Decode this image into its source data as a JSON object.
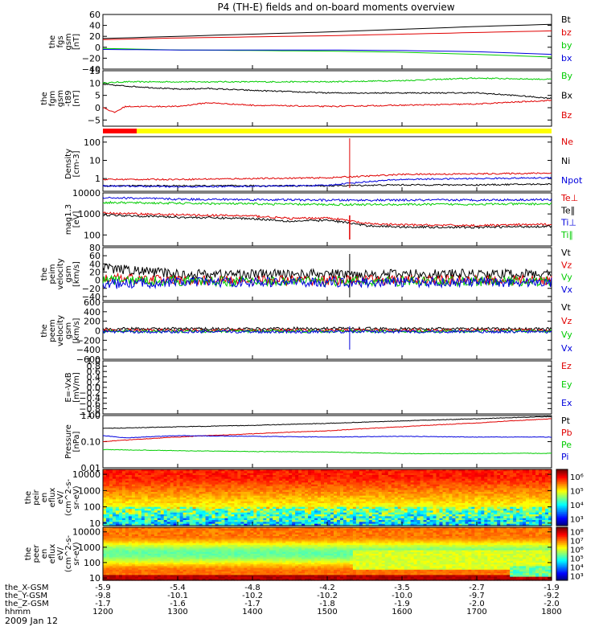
{
  "title": "P4 (TH-E) fields and on-board moments overview",
  "date_label": "2009 Jan 12",
  "chart_data": [
    {
      "type": "line",
      "id": "fgs",
      "ylabel": [
        "the",
        "fgs",
        "gsm",
        "[nT]"
      ],
      "ylim": [
        -40,
        60
      ],
      "yticks": [
        -40,
        -20,
        0,
        20,
        40,
        60
      ],
      "tick_labels": [
        "−40",
        "−20",
        "0",
        "20",
        "40",
        "60"
      ],
      "legend": [
        {
          "label": "Bt",
          "color": "#000000"
        },
        {
          "label": "bz",
          "color": "#e00000"
        },
        {
          "label": "by",
          "color": "#00cc00"
        },
        {
          "label": "bx",
          "color": "#0000dd"
        }
      ],
      "series": [
        {
          "name": "Bt",
          "color": "#000000",
          "x": [
            1200,
            1300,
            1400,
            1500,
            1600,
            1700,
            1800
          ],
          "values": [
            16,
            20,
            24,
            28,
            33,
            38,
            42
          ]
        },
        {
          "name": "bz",
          "color": "#e00000",
          "x": [
            1200,
            1300,
            1400,
            1500,
            1600,
            1700,
            1800
          ],
          "values": [
            14,
            17,
            19,
            21,
            24,
            27,
            30
          ]
        },
        {
          "name": "by",
          "color": "#00cc00",
          "x": [
            1200,
            1300,
            1400,
            1500,
            1600,
            1700,
            1800
          ],
          "values": [
            -2,
            -5,
            -6,
            -7,
            -9,
            -13,
            -18
          ]
        },
        {
          "name": "bx",
          "color": "#0000dd",
          "x": [
            1200,
            1300,
            1400,
            1500,
            1600,
            1700,
            1800
          ],
          "values": [
            -4,
            -5,
            -5,
            -5,
            -6,
            -8,
            -13
          ]
        }
      ]
    },
    {
      "type": "line",
      "id": "fgm",
      "ylabel": [
        "the",
        "fgm",
        "gsm",
        "-t89",
        "[nT]"
      ],
      "ylim": [
        -7.5,
        15
      ],
      "yticks": [
        -5,
        0,
        5,
        10,
        15
      ],
      "tick_labels": [
        "−5",
        "0",
        "5",
        "10",
        "15"
      ],
      "legend": [
        {
          "label": "By",
          "color": "#00cc00"
        },
        {
          "label": "Bx",
          "color": "#000000"
        },
        {
          "label": "Bz",
          "color": "#e00000"
        }
      ],
      "series": [
        {
          "name": "By",
          "color": "#00cc00",
          "x": [
            1200,
            1230,
            1300,
            1400,
            1500,
            1600,
            1700,
            1800
          ],
          "values": [
            10,
            10.5,
            10.5,
            10.5,
            10.5,
            11,
            12,
            11.5
          ]
        },
        {
          "name": "Bx",
          "color": "#000000",
          "x": [
            1200,
            1220,
            1300,
            1340,
            1400,
            1500,
            1600,
            1700,
            1750,
            1800
          ],
          "values": [
            9.5,
            9,
            7.5,
            7.8,
            7,
            6,
            6,
            6,
            5,
            3.8
          ]
        },
        {
          "name": "Bz",
          "color": "#e00000",
          "x": [
            1200,
            1215,
            1230,
            1300,
            1340,
            1400,
            1500,
            1600,
            1700,
            1800
          ],
          "values": [
            0.2,
            -2,
            0.5,
            0.5,
            2,
            1,
            0.5,
            1,
            1.5,
            3
          ]
        }
      ]
    },
    {
      "type": "line",
      "id": "density",
      "ylabel": [
        "Density",
        "[cm-3]"
      ],
      "yscale": "log",
      "ylim": [
        0.2,
        200
      ],
      "yticks": [
        1,
        10,
        100
      ],
      "tick_labels": [
        "1",
        "10",
        "100"
      ],
      "legend": [
        {
          "label": "Ne",
          "color": "#e00000"
        },
        {
          "label": "Ni",
          "color": "#000000"
        },
        {
          "label": "Npot",
          "color": "#0000dd"
        }
      ],
      "series": [
        {
          "name": "Ne",
          "color": "#e00000",
          "x": [
            1200,
            1300,
            1400,
            1500,
            1560,
            1600,
            1700,
            1800
          ],
          "values": [
            0.9,
            0.9,
            1.0,
            1.1,
            1.4,
            1.7,
            1.8,
            2.0
          ]
        },
        {
          "name": "Ni",
          "color": "#000000",
          "x": [
            1200,
            1300,
            1400,
            1500,
            1600,
            1700,
            1800
          ],
          "values": [
            0.4,
            0.4,
            0.4,
            0.4,
            0.45,
            0.45,
            0.5
          ]
        },
        {
          "name": "Npot",
          "color": "#0000dd",
          "x": [
            1200,
            1300,
            1400,
            1500,
            1560,
            1600,
            1700,
            1800
          ],
          "values": [
            0.4,
            0.35,
            0.38,
            0.42,
            0.7,
            0.9,
            1.0,
            1.1
          ]
        }
      ]
    },
    {
      "type": "line",
      "id": "temperature",
      "ylabel": [
        "mag1.3",
        "[eV]"
      ],
      "yscale": "log",
      "ylim": [
        30,
        10000
      ],
      "yticks": [
        100,
        1000,
        10000
      ],
      "tick_labels": [
        "100",
        "1000",
        "10000"
      ],
      "legend": [
        {
          "label": "Te⊥",
          "color": "#e00000"
        },
        {
          "label": "Te∥",
          "color": "#000000"
        },
        {
          "label": "Ti⊥",
          "color": "#0000dd"
        },
        {
          "label": "Ti∥",
          "color": "#00cc00"
        }
      ],
      "series": [
        {
          "name": "Ti⊥",
          "color": "#0000dd",
          "x": [
            1200,
            1300,
            1400,
            1500,
            1600,
            1700,
            1800
          ],
          "values": [
            6000,
            5000,
            4800,
            4500,
            4500,
            4600,
            4800
          ]
        },
        {
          "name": "Ti∥",
          "color": "#00cc00",
          "x": [
            1200,
            1300,
            1400,
            1500,
            1600,
            1700,
            1800
          ],
          "values": [
            3500,
            3200,
            3000,
            2800,
            2800,
            2900,
            3000
          ]
        },
        {
          "name": "Te⊥",
          "color": "#e00000",
          "x": [
            1200,
            1300,
            1400,
            1450,
            1500,
            1550,
            1600,
            1700,
            1800
          ],
          "values": [
            1100,
            900,
            800,
            600,
            650,
            350,
            300,
            280,
            320
          ]
        },
        {
          "name": "Te∥",
          "color": "#000000",
          "x": [
            1200,
            1300,
            1400,
            1450,
            1500,
            1550,
            1600,
            1700,
            1800
          ],
          "values": [
            900,
            700,
            600,
            450,
            500,
            280,
            240,
            230,
            260
          ]
        }
      ]
    },
    {
      "type": "line",
      "id": "velocity1",
      "ylabel": [
        "the",
        "peim",
        "velocity",
        "gsm",
        "[km/s]"
      ],
      "ylim": [
        -50,
        80
      ],
      "yticks": [
        -40,
        -20,
        0,
        20,
        40,
        60,
        80
      ],
      "tick_labels": [
        "−40",
        "−20",
        "0",
        "20",
        "40",
        "60",
        "80"
      ],
      "legend": [
        {
          "label": "Vt",
          "color": "#000000"
        },
        {
          "label": "Vz",
          "color": "#e00000"
        },
        {
          "label": "Vy",
          "color": "#00cc00"
        },
        {
          "label": "Vx",
          "color": "#0000dd"
        }
      ],
      "series": [
        {
          "name": "Vt",
          "color": "#000000",
          "x": [
            1200,
            1300,
            1400,
            1500,
            1600,
            1700,
            1800
          ],
          "values": [
            30,
            15,
            15,
            15,
            15,
            15,
            15
          ]
        },
        {
          "name": "Vz",
          "color": "#e00000",
          "x": [
            1200,
            1300,
            1400,
            1500,
            1600,
            1700,
            1800
          ],
          "values": [
            5,
            0,
            0,
            0,
            0,
            0,
            0
          ]
        },
        {
          "name": "Vy",
          "color": "#00cc00",
          "x": [
            1200,
            1300,
            1400,
            1500,
            1600,
            1700,
            1800
          ],
          "values": [
            0,
            -2,
            -3,
            -3,
            -3,
            -3,
            -3
          ]
        },
        {
          "name": "Vx",
          "color": "#0000dd",
          "x": [
            1200,
            1300,
            1400,
            1500,
            1600,
            1700,
            1800
          ],
          "values": [
            -10,
            -5,
            -5,
            -5,
            -5,
            -5,
            -5
          ]
        }
      ]
    },
    {
      "type": "line",
      "id": "velocity2",
      "ylabel": [
        "the",
        "peem",
        "velocity",
        "gsm",
        "[km/s]"
      ],
      "ylim": [
        -600,
        600
      ],
      "yticks": [
        -600,
        -400,
        -200,
        0,
        200,
        400,
        600
      ],
      "tick_labels": [
        "−600",
        "−400",
        "−200",
        "0",
        "200",
        "400",
        "600"
      ],
      "legend": [
        {
          "label": "Vt",
          "color": "#000000"
        },
        {
          "label": "Vz",
          "color": "#e00000"
        },
        {
          "label": "Vy",
          "color": "#00cc00"
        },
        {
          "label": "Vx",
          "color": "#0000dd"
        }
      ],
      "series": [
        {
          "name": "Vt",
          "color": "#000000",
          "x": [
            1200,
            1300,
            1400,
            1500,
            1600,
            1700,
            1800
          ],
          "values": [
            40,
            40,
            40,
            50,
            40,
            40,
            40
          ]
        },
        {
          "name": "Vz",
          "color": "#e00000",
          "x": [
            1200,
            1300,
            1400,
            1500,
            1600,
            1700,
            1800
          ],
          "values": [
            10,
            10,
            10,
            10,
            10,
            10,
            10
          ]
        },
        {
          "name": "Vy",
          "color": "#00cc00",
          "x": [
            1200,
            1300,
            1400,
            1500,
            1600,
            1700,
            1800
          ],
          "values": [
            -10,
            -10,
            -10,
            -10,
            -10,
            -10,
            -10
          ]
        },
        {
          "name": "Vx",
          "color": "#0000dd",
          "x": [
            1200,
            1300,
            1400,
            1500,
            1600,
            1700,
            1800
          ],
          "values": [
            -20,
            -20,
            -20,
            -20,
            -20,
            -20,
            -20
          ]
        }
      ]
    },
    {
      "type": "line",
      "id": "efield",
      "ylabel": [
        "E=-VxB",
        "[mV/m]"
      ],
      "ylim": [
        -1,
        1
      ],
      "yticks": [
        -1.0,
        -0.8,
        -0.6,
        -0.4,
        -0.2,
        0.0,
        0.2,
        0.4,
        0.6,
        0.8,
        1.0
      ],
      "tick_labels": [
        "−1.0",
        "−0.8",
        "−0.6",
        "−0.4",
        "−0.2",
        "0.0",
        "0.2",
        "0.4",
        "0.6",
        "0.8",
        "1.0"
      ],
      "legend": [
        {
          "label": "Ez",
          "color": "#e00000"
        },
        {
          "label": "Ey",
          "color": "#00cc00"
        },
        {
          "label": "Ex",
          "color": "#0000dd"
        }
      ],
      "series": []
    },
    {
      "type": "line",
      "id": "pressure",
      "ylabel": [
        "Pressure",
        "[nPa]"
      ],
      "yscale": "log",
      "ylim": [
        0.01,
        1
      ],
      "yticks": [
        0.01,
        0.1,
        1
      ],
      "tick_labels": [
        "0.01",
        "0.10",
        "1.00"
      ],
      "legend": [
        {
          "label": "Pt",
          "color": "#000000"
        },
        {
          "label": "Pb",
          "color": "#e00000"
        },
        {
          "label": "Pe",
          "color": "#00cc00"
        },
        {
          "label": "Pi",
          "color": "#0000dd"
        }
      ],
      "series": [
        {
          "name": "Pt",
          "color": "#000000",
          "x": [
            1200,
            1300,
            1400,
            1500,
            1600,
            1700,
            1800
          ],
          "values": [
            0.32,
            0.37,
            0.42,
            0.5,
            0.62,
            0.75,
            0.92
          ]
        },
        {
          "name": "Pb",
          "color": "#e00000",
          "x": [
            1200,
            1300,
            1400,
            1500,
            1600,
            1700,
            1800
          ],
          "values": [
            0.1,
            0.15,
            0.2,
            0.26,
            0.37,
            0.52,
            0.75
          ]
        },
        {
          "name": "Pi",
          "color": "#0000dd",
          "x": [
            1200,
            1230,
            1300,
            1400,
            1500,
            1600,
            1700,
            1800
          ],
          "values": [
            0.17,
            0.14,
            0.17,
            0.16,
            0.15,
            0.16,
            0.15,
            0.15
          ]
        },
        {
          "name": "Pe",
          "color": "#00cc00",
          "x": [
            1200,
            1300,
            1400,
            1500,
            1600,
            1700,
            1800
          ],
          "values": [
            0.05,
            0.045,
            0.042,
            0.04,
            0.035,
            0.035,
            0.036
          ]
        }
      ]
    },
    {
      "type": "heatmap",
      "id": "peir",
      "ylabel": [
        "the",
        "peir",
        "en",
        "eflux",
        "eV/",
        "(cm^2-s-",
        "sr-eV)"
      ],
      "yscale": "log",
      "ylim": [
        7,
        20000
      ],
      "yticks": [
        10,
        100,
        1000,
        10000
      ],
      "tick_labels": [
        "10",
        "100",
        "1000",
        "10000"
      ],
      "colorbar": {
        "range_exp": [
          2.5,
          6.5
        ],
        "tick_labels": [
          "10³",
          "10⁴",
          "10⁵",
          "10⁶"
        ]
      }
    },
    {
      "type": "heatmap",
      "id": "peer",
      "ylabel": [
        "the",
        "peer",
        "en",
        "eflux",
        "eV/",
        "(cm^2-s-",
        "sr-eV)"
      ],
      "yscale": "log",
      "ylim": [
        7,
        20000
      ],
      "yticks": [
        10,
        100,
        1000,
        10000
      ],
      "tick_labels": [
        "10",
        "100",
        "1000",
        "10000"
      ],
      "colorbar": {
        "range_exp": [
          2.5,
          8.5
        ],
        "tick_labels": [
          "10³",
          "10⁴",
          "10⁵",
          "10⁶",
          "10⁷",
          "10⁸"
        ]
      }
    }
  ],
  "x_axis": {
    "range": [
      1200,
      1800
    ],
    "ticks": [
      1200,
      1300,
      1400,
      1500,
      1600,
      1700,
      1800
    ],
    "rows": [
      {
        "label": "the_X-GSM",
        "values": [
          "-5.9",
          "-5.4",
          "-4.8",
          "-4.2",
          "-3.5",
          "-2.7",
          "-1.9"
        ]
      },
      {
        "label": "the_Y-GSM",
        "values": [
          "-9.8",
          "-10.1",
          "-10.2",
          "-10.2",
          "-10.0",
          "-9.7",
          "-9.2"
        ]
      },
      {
        "label": "the_Z-GSM",
        "values": [
          "-1.7",
          "-1.6",
          "-1.7",
          "-1.8",
          "-1.9",
          "-2.0",
          "-2.0"
        ]
      },
      {
        "label": "hhmm",
        "values": [
          "1200",
          "1300",
          "1400",
          "1500",
          "1600",
          "1700",
          "1800"
        ]
      }
    ]
  }
}
